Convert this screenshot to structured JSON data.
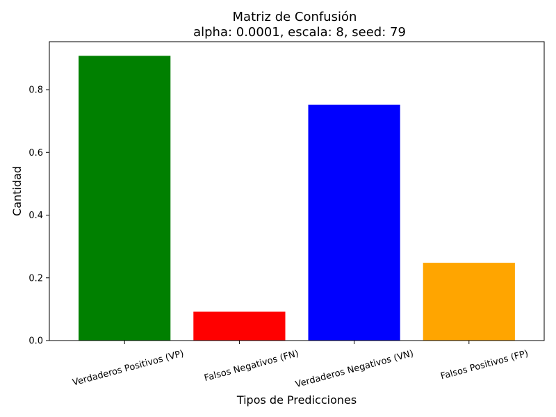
{
  "chart_data": {
    "type": "bar",
    "title": "Matriz de Confusión",
    "subtitle": "alpha: 0.0001, escala: 8, seed: 79",
    "xlabel": "Tipos de Predicciones",
    "ylabel": "Cantidad",
    "categories": [
      "Verdaderos Positivos (VP)",
      "Falsos Negativos (FN)",
      "Verdaderos Negativos (VN)",
      "Falsos Positivos (FP)"
    ],
    "values": [
      0.908,
      0.092,
      0.752,
      0.248
    ],
    "colors": [
      "#008000",
      "#ff0000",
      "#0000ff",
      "#ffa500"
    ],
    "ylim": [
      0,
      0.953
    ],
    "yticks": [
      0.0,
      0.2,
      0.4,
      0.6,
      0.8
    ],
    "ytick_labels": [
      "0.0",
      "0.2",
      "0.4",
      "0.6",
      "0.8"
    ],
    "grid": false,
    "legend": "none"
  }
}
